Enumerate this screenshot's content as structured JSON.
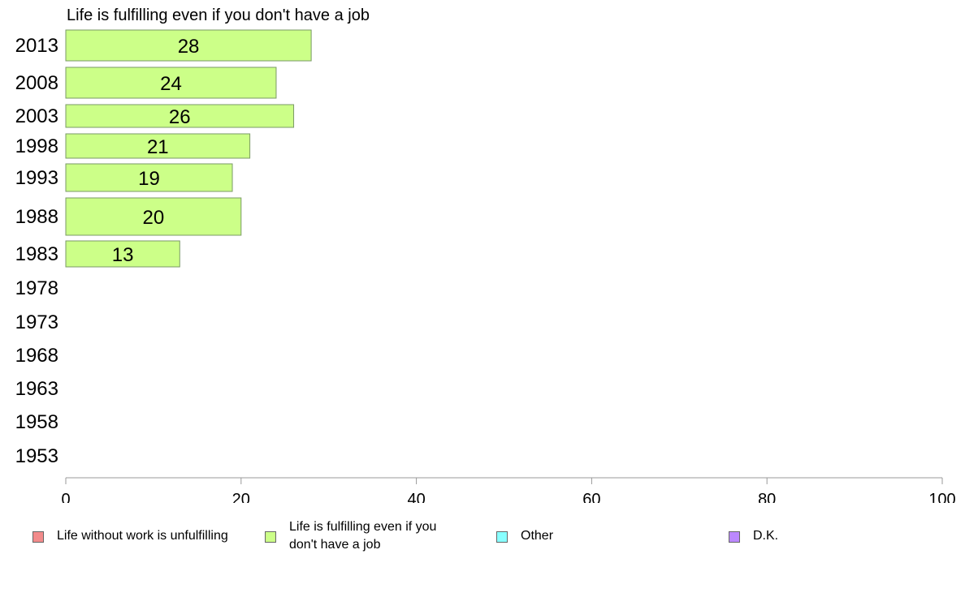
{
  "chart_data": {
    "type": "bar",
    "orientation": "horizontal",
    "title": "Life is fulfilling even if you don't have a job",
    "categories": [
      "2013",
      "2008",
      "2003",
      "1998",
      "1993",
      "1988",
      "1983",
      "1978",
      "1973",
      "1968",
      "1963",
      "1958",
      "1953"
    ],
    "series": [
      {
        "name": "Life is fulfilling even if you don't have a job",
        "values": [
          28,
          24,
          26,
          21,
          19,
          20,
          13,
          null,
          null,
          null,
          null,
          null,
          null
        ],
        "color": "#ccff88"
      }
    ],
    "data_labels": [
      "28",
      "24",
      "26",
      "21",
      "19",
      "20",
      "13",
      "",
      "",
      "",
      "",
      "",
      ""
    ],
    "xlim": [
      0,
      100
    ],
    "xticks": [
      "0",
      "20",
      "40",
      "60",
      "80",
      "100"
    ],
    "grid": false,
    "legend_position": "bottom"
  },
  "legend": {
    "items": [
      {
        "label": "Life without work is unfulfilling",
        "color": "#f28b8b"
      },
      {
        "label": "Life is fulfilling even if you don't have a job",
        "color": "#ccff88"
      },
      {
        "label": "Other",
        "color": "#88ffff"
      },
      {
        "label": "D.K.",
        "color": "#bb88ff"
      }
    ]
  }
}
